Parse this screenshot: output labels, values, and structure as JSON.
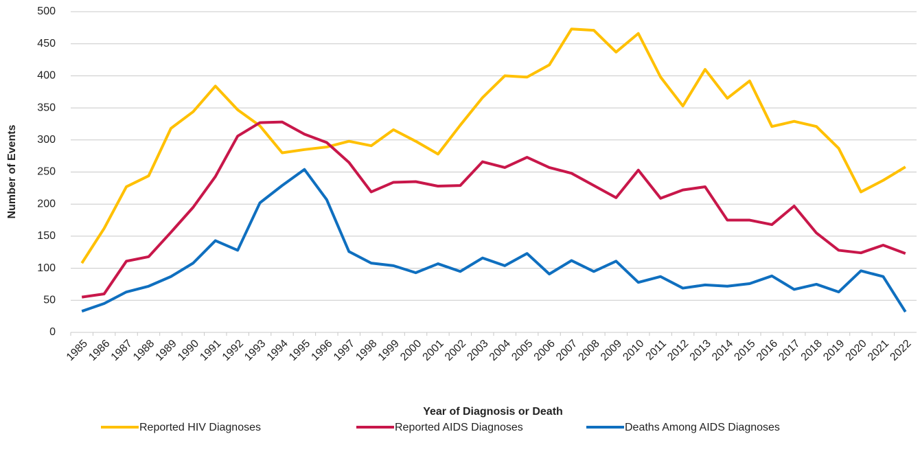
{
  "chart_data": {
    "type": "line",
    "x_label": "Year of Diagnosis or Death",
    "y_label": "Number of Events",
    "categories": [
      "1985",
      "1986",
      "1987",
      "1988",
      "1989",
      "1990",
      "1991",
      "1992",
      "1993",
      "1994",
      "1995",
      "1996",
      "1997",
      "1998",
      "1999",
      "2000",
      "2001",
      "2002",
      "2003",
      "2004",
      "2005",
      "2006",
      "2007",
      "2008",
      "2009",
      "2010",
      "2011",
      "2012",
      "2013",
      "2014",
      "2015",
      "2016",
      "2017",
      "2018",
      "2019",
      "2020",
      "2021",
      "2022"
    ],
    "series": [
      {
        "name": "Reported HIV Diagnoses",
        "color": "#FFC000",
        "values": [
          108,
          162,
          227,
          244,
          318,
          344,
          384,
          347,
          322,
          280,
          285,
          289,
          298,
          291,
          316,
          298,
          278,
          323,
          366,
          400,
          398,
          417,
          473,
          471,
          437,
          466,
          398,
          353,
          410,
          365,
          392,
          321,
          329,
          321,
          287,
          219,
          237,
          258
        ]
      },
      {
        "name": "Reported AIDS Diagnoses",
        "color": "#C8174A",
        "values": [
          55,
          60,
          111,
          118,
          156,
          195,
          243,
          306,
          327,
          328,
          309,
          296,
          265,
          219,
          234,
          235,
          228,
          229,
          266,
          257,
          273,
          257,
          248,
          229,
          210,
          253,
          209,
          222,
          227,
          175,
          175,
          168,
          197,
          155,
          128,
          124,
          136,
          123
        ]
      },
      {
        "name": "Deaths Among AIDS Diagnoses",
        "color": "#0F6FBF",
        "values": [
          33,
          45,
          63,
          72,
          87,
          108,
          143,
          128,
          202,
          229,
          254,
          207,
          126,
          108,
          104,
          93,
          107,
          95,
          116,
          104,
          123,
          91,
          112,
          95,
          111,
          78,
          87,
          69,
          74,
          72,
          76,
          88,
          67,
          75,
          63,
          96,
          87,
          32
        ]
      }
    ],
    "ylim": [
      0,
      500
    ],
    "yticks": [
      0,
      50,
      100,
      150,
      200,
      250,
      300,
      350,
      400,
      450,
      500
    ],
    "grid": true,
    "legend": "bottom"
  }
}
